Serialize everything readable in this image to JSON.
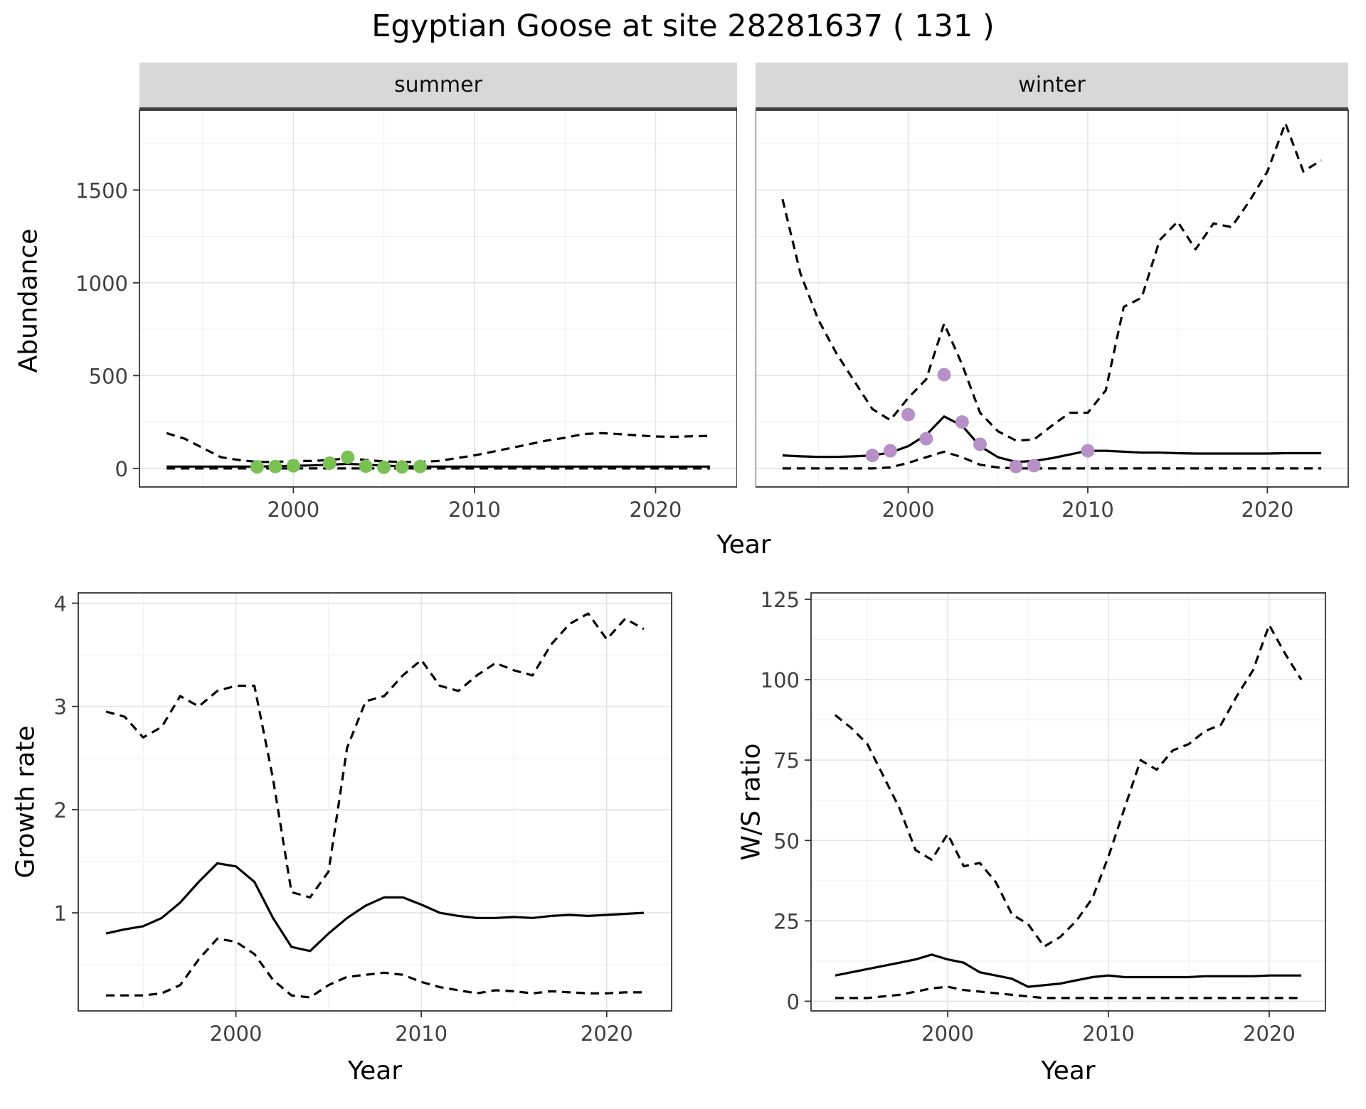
{
  "title": "Egyptian Goose at site 28281637 ( 131 )",
  "style": {
    "line": "#000000",
    "grid_major": "#e4e4e4",
    "grid_minor": "#f2f2f2",
    "panel_border": "#333333",
    "tick_text": "#404040",
    "strip_bg": "#d8d8d8",
    "strip_underline": "#454545",
    "summer_point_color": "#7ac154",
    "winter_point_color": "#b690c7"
  },
  "chart_data": [
    {
      "id": "summer",
      "type": "line",
      "facet_label": "summer",
      "xlabel": "Year",
      "ylabel": "Abundance",
      "xlim": [
        1991.5,
        2024.5
      ],
      "ylim": [
        -100,
        1930
      ],
      "xticks": [
        2000,
        2010,
        2020
      ],
      "yticks": [
        0,
        500,
        1000,
        1500
      ],
      "show_y_tick_labels": true,
      "x": [
        1993,
        1994,
        1995,
        1996,
        1997,
        1998,
        1999,
        2000,
        2001,
        2002,
        2003,
        2004,
        2005,
        2006,
        2007,
        2008,
        2009,
        2010,
        2011,
        2012,
        2013,
        2014,
        2015,
        2016,
        2017,
        2018,
        2019,
        2020,
        2021,
        2022,
        2023
      ],
      "series": [
        {
          "name": "estimate",
          "style": "solid",
          "values": [
            10,
            10,
            10,
            10,
            10,
            10,
            12,
            14,
            16,
            20,
            25,
            20,
            15,
            12,
            10,
            10,
            10,
            10,
            10,
            10,
            10,
            10,
            10,
            10,
            10,
            10,
            10,
            10,
            10,
            10,
            10
          ]
        },
        {
          "name": "upper_ci",
          "style": "dashed",
          "values": [
            190,
            160,
            110,
            60,
            45,
            35,
            35,
            40,
            40,
            45,
            55,
            45,
            38,
            35,
            35,
            40,
            55,
            70,
            90,
            110,
            130,
            150,
            165,
            185,
            190,
            185,
            178,
            172,
            170,
            173,
            175
          ]
        },
        {
          "name": "lower_ci",
          "style": "dashed",
          "values": [
            0,
            0,
            0,
            0,
            0,
            0,
            0,
            0,
            0,
            0,
            0,
            0,
            0,
            0,
            0,
            0,
            0,
            0,
            0,
            0,
            0,
            0,
            0,
            0,
            0,
            0,
            0,
            0,
            0,
            0,
            0
          ]
        },
        {
          "name": "observed_counts",
          "style": "points",
          "color": "#7ac154",
          "x": [
            1998,
            1999,
            2000,
            2002,
            2003,
            2004,
            2005,
            2006,
            2007
          ],
          "y": [
            8,
            10,
            14,
            28,
            60,
            12,
            6,
            8,
            10
          ]
        }
      ]
    },
    {
      "id": "winter",
      "type": "line",
      "facet_label": "winter",
      "xlabel": "Year",
      "ylabel": "Abundance",
      "xlim": [
        1991.5,
        2024.5
      ],
      "ylim": [
        -100,
        1930
      ],
      "xticks": [
        2000,
        2010,
        2020
      ],
      "yticks": [
        0,
        500,
        1000,
        1500
      ],
      "show_y_tick_labels": false,
      "x": [
        1993,
        1994,
        1995,
        1996,
        1997,
        1998,
        1999,
        2000,
        2001,
        2002,
        2003,
        2004,
        2005,
        2006,
        2007,
        2008,
        2009,
        2010,
        2011,
        2012,
        2013,
        2014,
        2015,
        2016,
        2017,
        2018,
        2019,
        2020,
        2021,
        2022,
        2023
      ],
      "series": [
        {
          "name": "estimate",
          "style": "solid",
          "values": [
            70,
            65,
            62,
            62,
            65,
            70,
            85,
            120,
            180,
            280,
            230,
            120,
            60,
            35,
            40,
            55,
            75,
            95,
            95,
            90,
            85,
            85,
            82,
            80,
            80,
            80,
            80,
            80,
            82,
            82,
            82
          ]
        },
        {
          "name": "upper_ci",
          "style": "dashed",
          "values": [
            1450,
            1050,
            800,
            620,
            470,
            320,
            260,
            380,
            480,
            780,
            560,
            300,
            200,
            150,
            155,
            230,
            300,
            300,
            420,
            870,
            920,
            1230,
            1330,
            1180,
            1320,
            1300,
            1440,
            1600,
            1860,
            1600,
            1660
          ]
        },
        {
          "name": "lower_ci",
          "style": "dashed",
          "values": [
            0,
            0,
            0,
            0,
            0,
            0,
            5,
            30,
            60,
            90,
            60,
            20,
            5,
            0,
            0,
            0,
            0,
            0,
            0,
            0,
            0,
            0,
            0,
            0,
            0,
            0,
            0,
            0,
            0,
            0,
            0
          ]
        },
        {
          "name": "observed_counts",
          "style": "points",
          "color": "#b690c7",
          "x": [
            1998,
            1999,
            2000,
            2001,
            2002,
            2003,
            2004,
            2006,
            2007,
            2010
          ],
          "y": [
            70,
            95,
            290,
            160,
            505,
            250,
            130,
            10,
            15,
            95
          ]
        }
      ]
    },
    {
      "id": "growth",
      "type": "line",
      "facet_label": "",
      "xlabel": "Year",
      "ylabel": "Growth rate",
      "xlim": [
        1991.5,
        2023.5
      ],
      "ylim": [
        0.05,
        4.1
      ],
      "xticks": [
        2000,
        2010,
        2020
      ],
      "yticks": [
        1,
        2,
        3,
        4
      ],
      "show_y_tick_labels": true,
      "x": [
        1993,
        1994,
        1995,
        1996,
        1997,
        1998,
        1999,
        2000,
        2001,
        2002,
        2003,
        2004,
        2005,
        2006,
        2007,
        2008,
        2009,
        2010,
        2011,
        2012,
        2013,
        2014,
        2015,
        2016,
        2017,
        2018,
        2019,
        2020,
        2021,
        2022
      ],
      "series": [
        {
          "name": "estimate",
          "style": "solid",
          "values": [
            0.8,
            0.84,
            0.87,
            0.95,
            1.1,
            1.3,
            1.48,
            1.45,
            1.3,
            0.95,
            0.67,
            0.63,
            0.8,
            0.95,
            1.07,
            1.15,
            1.15,
            1.08,
            1.0,
            0.97,
            0.95,
            0.95,
            0.96,
            0.95,
            0.97,
            0.98,
            0.97,
            0.98,
            0.99,
            1.0
          ]
        },
        {
          "name": "upper_ci",
          "style": "dashed",
          "values": [
            2.95,
            2.9,
            2.7,
            2.8,
            3.1,
            3.0,
            3.15,
            3.2,
            3.2,
            2.3,
            1.2,
            1.15,
            1.4,
            2.6,
            3.05,
            3.1,
            3.3,
            3.45,
            3.2,
            3.15,
            3.3,
            3.42,
            3.35,
            3.3,
            3.6,
            3.8,
            3.9,
            3.65,
            3.85,
            3.75
          ]
        },
        {
          "name": "lower_ci",
          "style": "dashed",
          "values": [
            0.2,
            0.2,
            0.2,
            0.22,
            0.3,
            0.55,
            0.75,
            0.72,
            0.6,
            0.35,
            0.2,
            0.18,
            0.3,
            0.38,
            0.4,
            0.42,
            0.4,
            0.33,
            0.28,
            0.25,
            0.22,
            0.25,
            0.24,
            0.22,
            0.24,
            0.23,
            0.22,
            0.22,
            0.23,
            0.23
          ]
        }
      ]
    },
    {
      "id": "ws",
      "type": "line",
      "facet_label": "",
      "xlabel": "Year",
      "ylabel": "W/S ratio",
      "xlim": [
        1991.5,
        2023.5
      ],
      "ylim": [
        -3,
        127
      ],
      "xticks": [
        2000,
        2010,
        2020
      ],
      "yticks": [
        0,
        25,
        50,
        75,
        100,
        125
      ],
      "show_y_tick_labels": true,
      "x": [
        1993,
        1994,
        1995,
        1996,
        1997,
        1998,
        1999,
        2000,
        2001,
        2002,
        2003,
        2004,
        2005,
        2006,
        2007,
        2008,
        2009,
        2010,
        2011,
        2012,
        2013,
        2014,
        2015,
        2016,
        2017,
        2018,
        2019,
        2020,
        2021,
        2022
      ],
      "series": [
        {
          "name": "estimate",
          "style": "solid",
          "values": [
            8,
            9,
            10,
            11,
            12,
            13,
            14.5,
            13,
            12,
            9,
            8,
            7,
            4.5,
            5,
            5.5,
            6.5,
            7.5,
            8,
            7.5,
            7.5,
            7.5,
            7.5,
            7.5,
            7.8,
            7.8,
            7.8,
            7.8,
            8,
            8,
            8
          ]
        },
        {
          "name": "upper_ci",
          "style": "dashed",
          "values": [
            89,
            85,
            80,
            70,
            60,
            47,
            44,
            52,
            42,
            43,
            37,
            27,
            24,
            17,
            20,
            25,
            32,
            45,
            60,
            75,
            72,
            78,
            80,
            84,
            86,
            95,
            103,
            117,
            108,
            100
          ]
        },
        {
          "name": "lower_ci",
          "style": "dashed",
          "values": [
            1,
            1,
            1,
            1.5,
            2,
            3,
            4,
            4.5,
            3.5,
            3,
            2.5,
            2,
            1.5,
            1,
            1,
            1,
            1,
            1,
            1,
            1,
            1,
            1,
            1,
            1,
            1,
            1,
            1,
            1,
            1,
            1
          ]
        }
      ]
    }
  ]
}
